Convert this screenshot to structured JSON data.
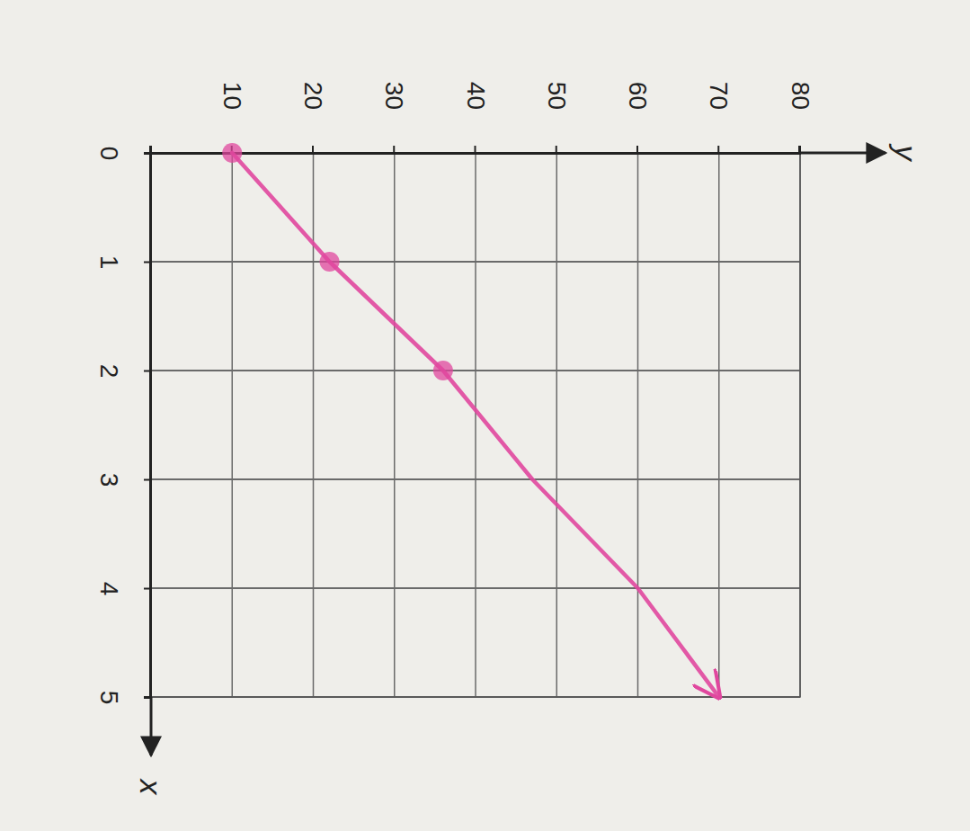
{
  "chart_data": {
    "type": "line",
    "x_label": "x",
    "y_label": "y",
    "xlim": [
      0,
      5
    ],
    "ylim": [
      0,
      80
    ],
    "xticks": [
      0,
      1,
      2,
      3,
      4,
      5
    ],
    "yticks": [
      10,
      20,
      30,
      40,
      50,
      60,
      70,
      80
    ],
    "grid": true,
    "series": [
      {
        "type": "scatter",
        "color": "#e0479e",
        "marker": "circle",
        "x": [
          0,
          1,
          2
        ],
        "values": [
          10,
          22,
          36
        ]
      },
      {
        "type": "line",
        "color": "#e0479e",
        "line_style": "arrow",
        "x": [
          0,
          1,
          2,
          3,
          4,
          5
        ],
        "values": [
          10,
          22,
          36,
          47,
          60,
          70
        ]
      }
    ]
  }
}
